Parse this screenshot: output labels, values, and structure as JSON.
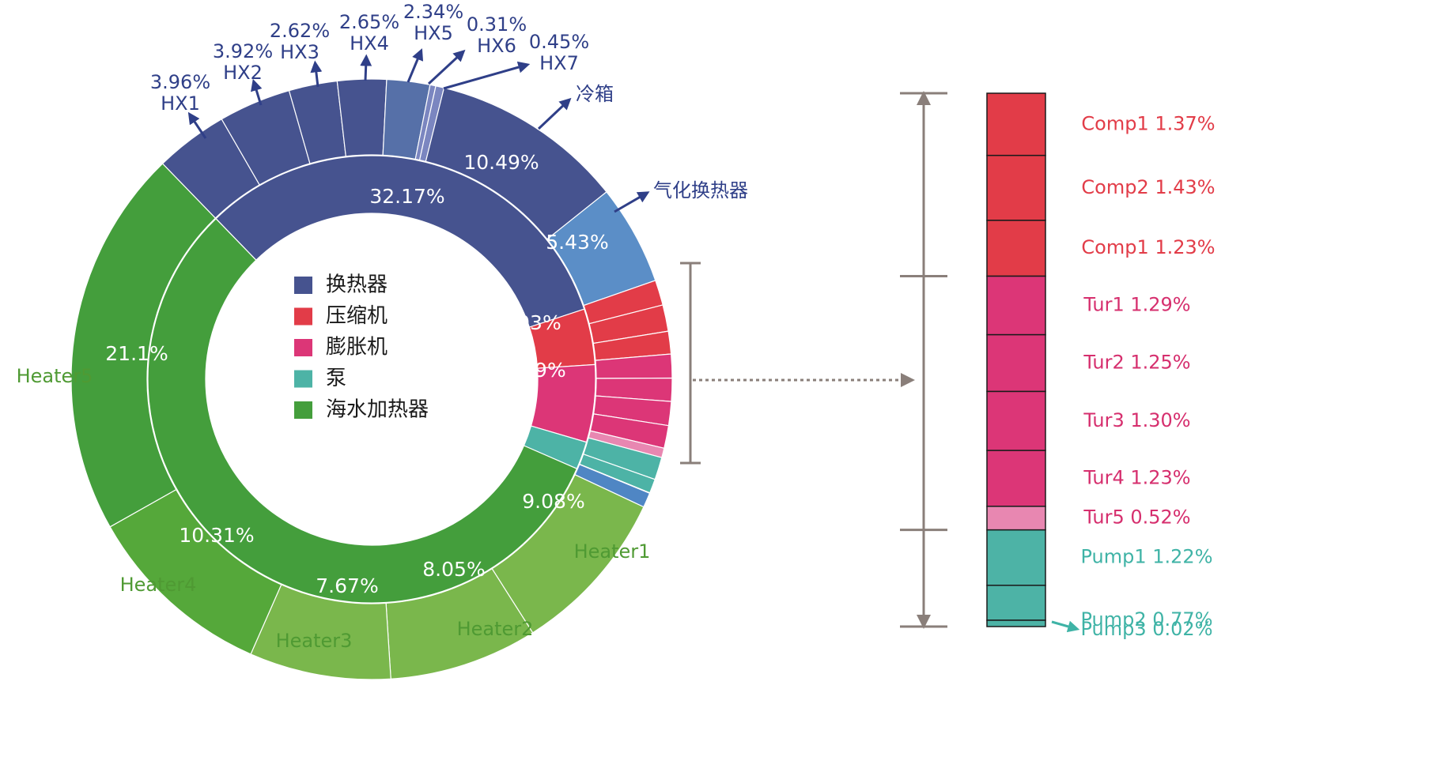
{
  "chart_data": [
    {
      "type": "pie",
      "subtype": "sunburst",
      "inner_ring": [
        {
          "label": "换热器",
          "value": 32.17,
          "text": "32.17%",
          "color": "#46538f"
        },
        {
          "label": "压缩机",
          "value": 4.03,
          "text": "4.03%",
          "color": "#e23c48"
        },
        {
          "label": "膨胀机",
          "value": 5.59,
          "text": "5.59%",
          "color": "#dc3677"
        },
        {
          "label": "泵",
          "value": 2.01,
          "text": "",
          "color": "#4db3a6"
        },
        {
          "label": "海水加热器",
          "value": 56.2,
          "text": "56.2%",
          "color": "#449e3c"
        }
      ],
      "outer_ring": [
        {
          "name": "HX1",
          "value": 3.96,
          "text": "",
          "color": "#46538f",
          "callout": "3.96%\nHX1",
          "callout_color": "#2f3f88"
        },
        {
          "name": "HX2",
          "value": 3.92,
          "text": "",
          "color": "#46538f",
          "callout": "3.92%\nHX2",
          "callout_color": "#2f3f88"
        },
        {
          "name": "HX3",
          "value": 2.62,
          "text": "",
          "color": "#46538f",
          "callout": "2.62%\nHX3",
          "callout_color": "#2f3f88"
        },
        {
          "name": "HX4",
          "value": 2.65,
          "text": "",
          "color": "#46538f",
          "callout": "2.65%\nHX4",
          "callout_color": "#2f3f88"
        },
        {
          "name": "HX5",
          "value": 2.34,
          "text": "",
          "color": "#5670a8",
          "callout": "2.34%\nHX5",
          "callout_color": "#2f3f88"
        },
        {
          "name": "HX6",
          "value": 0.31,
          "text": "",
          "color": "#7b86c0",
          "callout": "0.31%\nHX6",
          "callout_color": "#2f3f88"
        },
        {
          "name": "HX7",
          "value": 0.45,
          "text": "",
          "color": "#7b86c0",
          "callout": "0.45%\nHX7",
          "callout_color": "#2f3f88"
        },
        {
          "name": "冷箱",
          "value": 10.49,
          "text": "10.49%",
          "color": "#46538f",
          "callout": "冷箱",
          "callout_color": "#2f3f88"
        },
        {
          "name": "气化换热器",
          "value": 5.43,
          "text": "5.43%",
          "color": "#5b8ec7",
          "callout": "气化换热器",
          "callout_color": "#2f3f88"
        },
        {
          "name": "Comp1",
          "value": 1.37,
          "text": "",
          "color": "#e23c48"
        },
        {
          "name": "Comp2",
          "value": 1.43,
          "text": "",
          "color": "#e23c48"
        },
        {
          "name": "Comp1",
          "value": 1.23,
          "text": "",
          "color": "#e23c48"
        },
        {
          "name": "Tur1",
          "value": 1.29,
          "text": "",
          "color": "#dc3677"
        },
        {
          "name": "Tur2",
          "value": 1.25,
          "text": "",
          "color": "#dc3677"
        },
        {
          "name": "Tur3",
          "value": 1.3,
          "text": "",
          "color": "#dc3677"
        },
        {
          "name": "Tur4",
          "value": 1.23,
          "text": "",
          "color": "#dc3677"
        },
        {
          "name": "Tur5",
          "value": 0.52,
          "text": "",
          "color": "#e887b1"
        },
        {
          "name": "Pump1",
          "value": 1.22,
          "text": "",
          "color": "#4db3a6"
        },
        {
          "name": "Pump2",
          "value": 0.77,
          "text": "",
          "color": "#4db3a6"
        },
        {
          "name": "Pump3",
          "value": 0.02,
          "text": "",
          "color": "#4db3a6"
        },
        {
          "name": "extra",
          "value": 0.8,
          "text": "",
          "color": "#4f86c4"
        },
        {
          "name": "Heater1",
          "value": 9.08,
          "text": "9.08%",
          "color": "#7ab74c",
          "callout": "Heater1",
          "callout_color": "#4f9a33"
        },
        {
          "name": "Heater2",
          "value": 8.05,
          "text": "8.05%",
          "color": "#7ab74c",
          "callout": "Heater2",
          "callout_color": "#4f9a33"
        },
        {
          "name": "Heater3",
          "value": 7.67,
          "text": "7.67%",
          "color": "#7ab74c",
          "callout": "Heater3",
          "callout_color": "#4f9a33"
        },
        {
          "name": "Heater4",
          "value": 10.31,
          "text": "10.31%",
          "color": "#55a83a",
          "callout": "Heater4",
          "callout_color": "#4f9a33"
        },
        {
          "name": "Heater5",
          "value": 21.1,
          "text": "21.1%",
          "color": "#449e3c",
          "callout": "Heater5",
          "callout_color": "#4f9a33"
        }
      ],
      "legend": {
        "placement": "center",
        "items": [
          {
            "label": "换热器",
            "color": "#46538f"
          },
          {
            "label": "压缩机",
            "color": "#e23c48"
          },
          {
            "label": "膨胀机",
            "color": "#dc3677"
          },
          {
            "label": "泵",
            "color": "#4db3a6"
          },
          {
            "label": "海水加热器",
            "color": "#449e3c"
          }
        ]
      }
    },
    {
      "type": "bar",
      "subtype": "stacked-column",
      "segments": [
        {
          "label": "Comp1 1.37%",
          "name": "Comp1",
          "value": 1.37,
          "color": "#e23c48",
          "text_color": "#e23c48"
        },
        {
          "label": "Comp2 1.43%",
          "name": "Comp2",
          "value": 1.43,
          "color": "#e23c48",
          "text_color": "#e23c48"
        },
        {
          "label": "Comp1 1.23%",
          "name": "Comp1",
          "value": 1.23,
          "color": "#e23c48",
          "text_color": "#e23c48"
        },
        {
          "label": "Tur1 1.29%",
          "name": "Tur1",
          "value": 1.29,
          "color": "#dc3677",
          "text_color": "#d62f6e"
        },
        {
          "label": "Tur2 1.25%",
          "name": "Tur2",
          "value": 1.25,
          "color": "#dc3677",
          "text_color": "#d62f6e"
        },
        {
          "label": "Tur3 1.30%",
          "name": "Tur3",
          "value": 1.3,
          "color": "#dc3677",
          "text_color": "#d62f6e"
        },
        {
          "label": "Tur4 1.23%",
          "name": "Tur4",
          "value": 1.23,
          "color": "#dc3677",
          "text_color": "#d62f6e"
        },
        {
          "label": "Tur5 0.52%",
          "name": "Tur5",
          "value": 0.52,
          "color": "#e887b1",
          "text_color": "#d62f6e"
        },
        {
          "label": "Pump1 1.22%",
          "name": "Pump1",
          "value": 1.22,
          "color": "#4db3a6",
          "text_color": "#3fb3a6"
        },
        {
          "label": "Pump2 0.77%",
          "name": "Pump2",
          "value": 0.77,
          "color": "#4db3a6",
          "text_color": "#3fb3a6"
        },
        {
          "label": "Pump3 0.02%",
          "name": "Pump3",
          "value": 0.02,
          "color": "#4db3a6",
          "text_color": "#3fb3a6"
        }
      ]
    }
  ]
}
